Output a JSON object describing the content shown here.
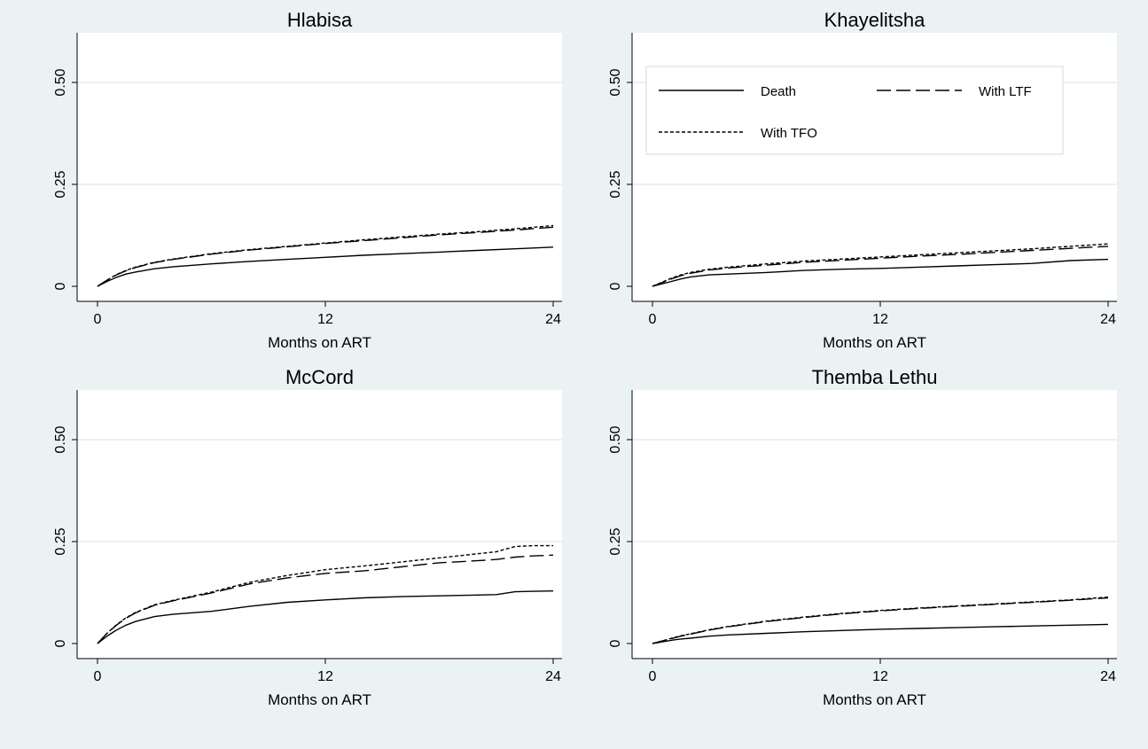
{
  "colors": {
    "outer_background": "#eaf2f3",
    "plot_background": "#ffffff",
    "grid": "#e5e5e5",
    "axis": "#000000",
    "line": "#000000"
  },
  "legend": {
    "position": "top inside Khayelitsha panel",
    "items": [
      {
        "label": "Death",
        "style": "solid"
      },
      {
        "label": "With LTF",
        "style": "long-dash"
      },
      {
        "label": "With TFO",
        "style": "short-dash"
      }
    ]
  },
  "chart_data": [
    {
      "type": "line",
      "title": "Hlabisa",
      "xlabel": "Months on ART",
      "ylabel": "",
      "xlim": [
        0,
        24
      ],
      "ylim": [
        0,
        0.5
      ],
      "xticks": [
        "0",
        "12",
        "24"
      ],
      "yticks": [
        "0",
        "0.25",
        "0.50"
      ],
      "grid": true,
      "x": [
        0,
        0.5,
        1,
        1.5,
        2,
        3,
        4,
        6,
        8,
        10,
        12,
        14,
        16,
        18,
        20,
        22,
        24
      ],
      "series": [
        {
          "name": "Death",
          "style": "solid",
          "values": [
            0,
            0.012,
            0.022,
            0.03,
            0.035,
            0.043,
            0.048,
            0.055,
            0.061,
            0.066,
            0.071,
            0.076,
            0.08,
            0.084,
            0.088,
            0.092,
            0.096
          ]
        },
        {
          "name": "With LTF",
          "style": "long-dash",
          "values": [
            0,
            0.015,
            0.028,
            0.038,
            0.046,
            0.058,
            0.066,
            0.079,
            0.089,
            0.097,
            0.105,
            0.112,
            0.119,
            0.126,
            0.132,
            0.138,
            0.145
          ]
        },
        {
          "name": "With TFO",
          "style": "short-dash",
          "values": [
            0,
            0.015,
            0.029,
            0.039,
            0.047,
            0.059,
            0.067,
            0.08,
            0.09,
            0.098,
            0.106,
            0.114,
            0.121,
            0.128,
            0.134,
            0.141,
            0.149
          ]
        }
      ]
    },
    {
      "type": "line",
      "title": "Khayelitsha",
      "xlabel": "Months on ART",
      "ylabel": "",
      "xlim": [
        0,
        24
      ],
      "ylim": [
        0,
        0.5
      ],
      "xticks": [
        "0",
        "12",
        "24"
      ],
      "yticks": [
        "0",
        "0.25",
        "0.50"
      ],
      "grid": true,
      "x": [
        0,
        0.5,
        1,
        1.5,
        2,
        3,
        4,
        6,
        8,
        10,
        12,
        14,
        16,
        18,
        20,
        22,
        24
      ],
      "series": [
        {
          "name": "Death",
          "style": "solid",
          "values": [
            0,
            0.006,
            0.012,
            0.018,
            0.023,
            0.028,
            0.03,
            0.034,
            0.039,
            0.042,
            0.044,
            0.047,
            0.05,
            0.053,
            0.056,
            0.063,
            0.066
          ]
        },
        {
          "name": "With LTF",
          "style": "long-dash",
          "values": [
            0,
            0.009,
            0.018,
            0.026,
            0.032,
            0.04,
            0.045,
            0.052,
            0.059,
            0.064,
            0.069,
            0.074,
            0.078,
            0.083,
            0.088,
            0.093,
            0.098
          ]
        },
        {
          "name": "With TFO",
          "style": "short-dash",
          "values": [
            0,
            0.01,
            0.02,
            0.028,
            0.034,
            0.042,
            0.047,
            0.055,
            0.062,
            0.067,
            0.072,
            0.077,
            0.082,
            0.087,
            0.092,
            0.098,
            0.104
          ]
        }
      ]
    },
    {
      "type": "line",
      "title": "McCord",
      "xlabel": "Months on ART",
      "ylabel": "",
      "xlim": [
        0,
        24
      ],
      "ylim": [
        0,
        0.5
      ],
      "xticks": [
        "0",
        "12",
        "24"
      ],
      "yticks": [
        "0",
        "0.25",
        "0.50"
      ],
      "grid": true,
      "x": [
        0,
        0.5,
        1,
        1.5,
        2,
        3,
        4,
        6,
        8,
        10,
        12,
        14,
        16,
        18,
        20,
        21,
        22,
        23,
        24
      ],
      "series": [
        {
          "name": "Death",
          "style": "solid",
          "values": [
            0,
            0.018,
            0.033,
            0.045,
            0.054,
            0.066,
            0.072,
            0.079,
            0.091,
            0.101,
            0.107,
            0.112,
            0.115,
            0.117,
            0.119,
            0.12,
            0.127,
            0.128,
            0.129
          ]
        },
        {
          "name": "With LTF",
          "style": "long-dash",
          "values": [
            0,
            0.025,
            0.045,
            0.062,
            0.075,
            0.094,
            0.105,
            0.124,
            0.146,
            0.161,
            0.172,
            0.178,
            0.188,
            0.198,
            0.203,
            0.206,
            0.212,
            0.215,
            0.217
          ]
        },
        {
          "name": "With TFO",
          "style": "short-dash",
          "values": [
            0,
            0.025,
            0.046,
            0.063,
            0.076,
            0.095,
            0.106,
            0.126,
            0.15,
            0.167,
            0.181,
            0.19,
            0.2,
            0.21,
            0.22,
            0.225,
            0.238,
            0.24,
            0.24
          ]
        }
      ]
    },
    {
      "type": "line",
      "title": "Themba Lethu",
      "xlabel": "Months on ART",
      "ylabel": "",
      "xlim": [
        0,
        24
      ],
      "ylim": [
        0,
        0.5
      ],
      "xticks": [
        "0",
        "12",
        "24"
      ],
      "yticks": [
        "0",
        "0.25",
        "0.50"
      ],
      "grid": true,
      "x": [
        0,
        0.5,
        1,
        1.5,
        2,
        3,
        4,
        6,
        8,
        10,
        12,
        14,
        16,
        18,
        20,
        22,
        24
      ],
      "series": [
        {
          "name": "Death",
          "style": "solid",
          "values": [
            0,
            0.004,
            0.008,
            0.011,
            0.013,
            0.018,
            0.021,
            0.025,
            0.029,
            0.032,
            0.035,
            0.037,
            0.039,
            0.041,
            0.043,
            0.045,
            0.047
          ]
        },
        {
          "name": "With LTF",
          "style": "long-dash",
          "values": [
            0,
            0.006,
            0.012,
            0.018,
            0.023,
            0.033,
            0.041,
            0.054,
            0.064,
            0.073,
            0.08,
            0.086,
            0.091,
            0.096,
            0.101,
            0.106,
            0.112
          ]
        },
        {
          "name": "With TFO",
          "style": "short-dash",
          "values": [
            0,
            0.006,
            0.013,
            0.019,
            0.024,
            0.034,
            0.042,
            0.055,
            0.065,
            0.074,
            0.081,
            0.087,
            0.092,
            0.097,
            0.102,
            0.107,
            0.114
          ]
        }
      ]
    }
  ]
}
